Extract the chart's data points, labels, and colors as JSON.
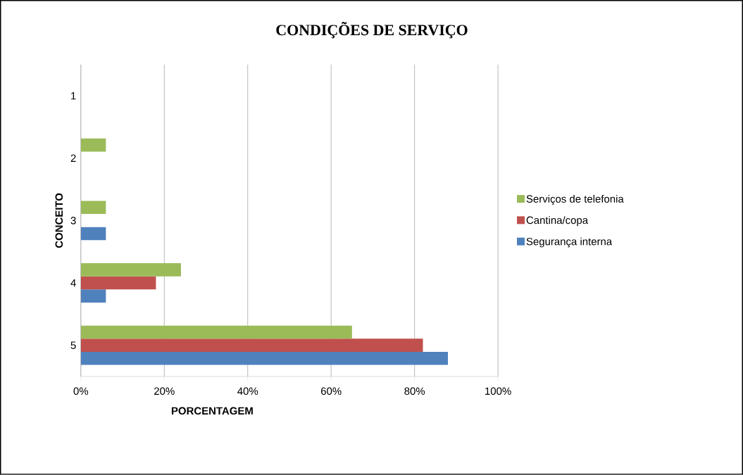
{
  "chart_data": {
    "type": "bar",
    "orientation": "horizontal",
    "title": "CONDIÇÕES DE SERVIÇO",
    "xlabel": "PORCENTAGEM",
    "ylabel": "CONCEITO",
    "categories": [
      "1",
      "2",
      "3",
      "4",
      "5"
    ],
    "series": [
      {
        "name": "Segurança interna",
        "color": "#4f81bd",
        "values": [
          0,
          0,
          6,
          6,
          88
        ]
      },
      {
        "name": "Cantina/copa",
        "color": "#c0504d",
        "values": [
          0,
          0,
          0,
          18,
          82
        ]
      },
      {
        "name": "Serviços de telefonia",
        "color": "#9bbb59",
        "values": [
          0,
          6,
          6,
          24,
          65
        ]
      }
    ],
    "xlim": [
      0,
      100
    ],
    "xticks": [
      {
        "value": 0,
        "label": "0%"
      },
      {
        "value": 20,
        "label": "20%"
      },
      {
        "value": 40,
        "label": "40%"
      },
      {
        "value": 60,
        "label": "60%"
      },
      {
        "value": 80,
        "label": "80%"
      },
      {
        "value": 100,
        "label": "100%"
      }
    ],
    "grid": "x",
    "legend": "right"
  }
}
